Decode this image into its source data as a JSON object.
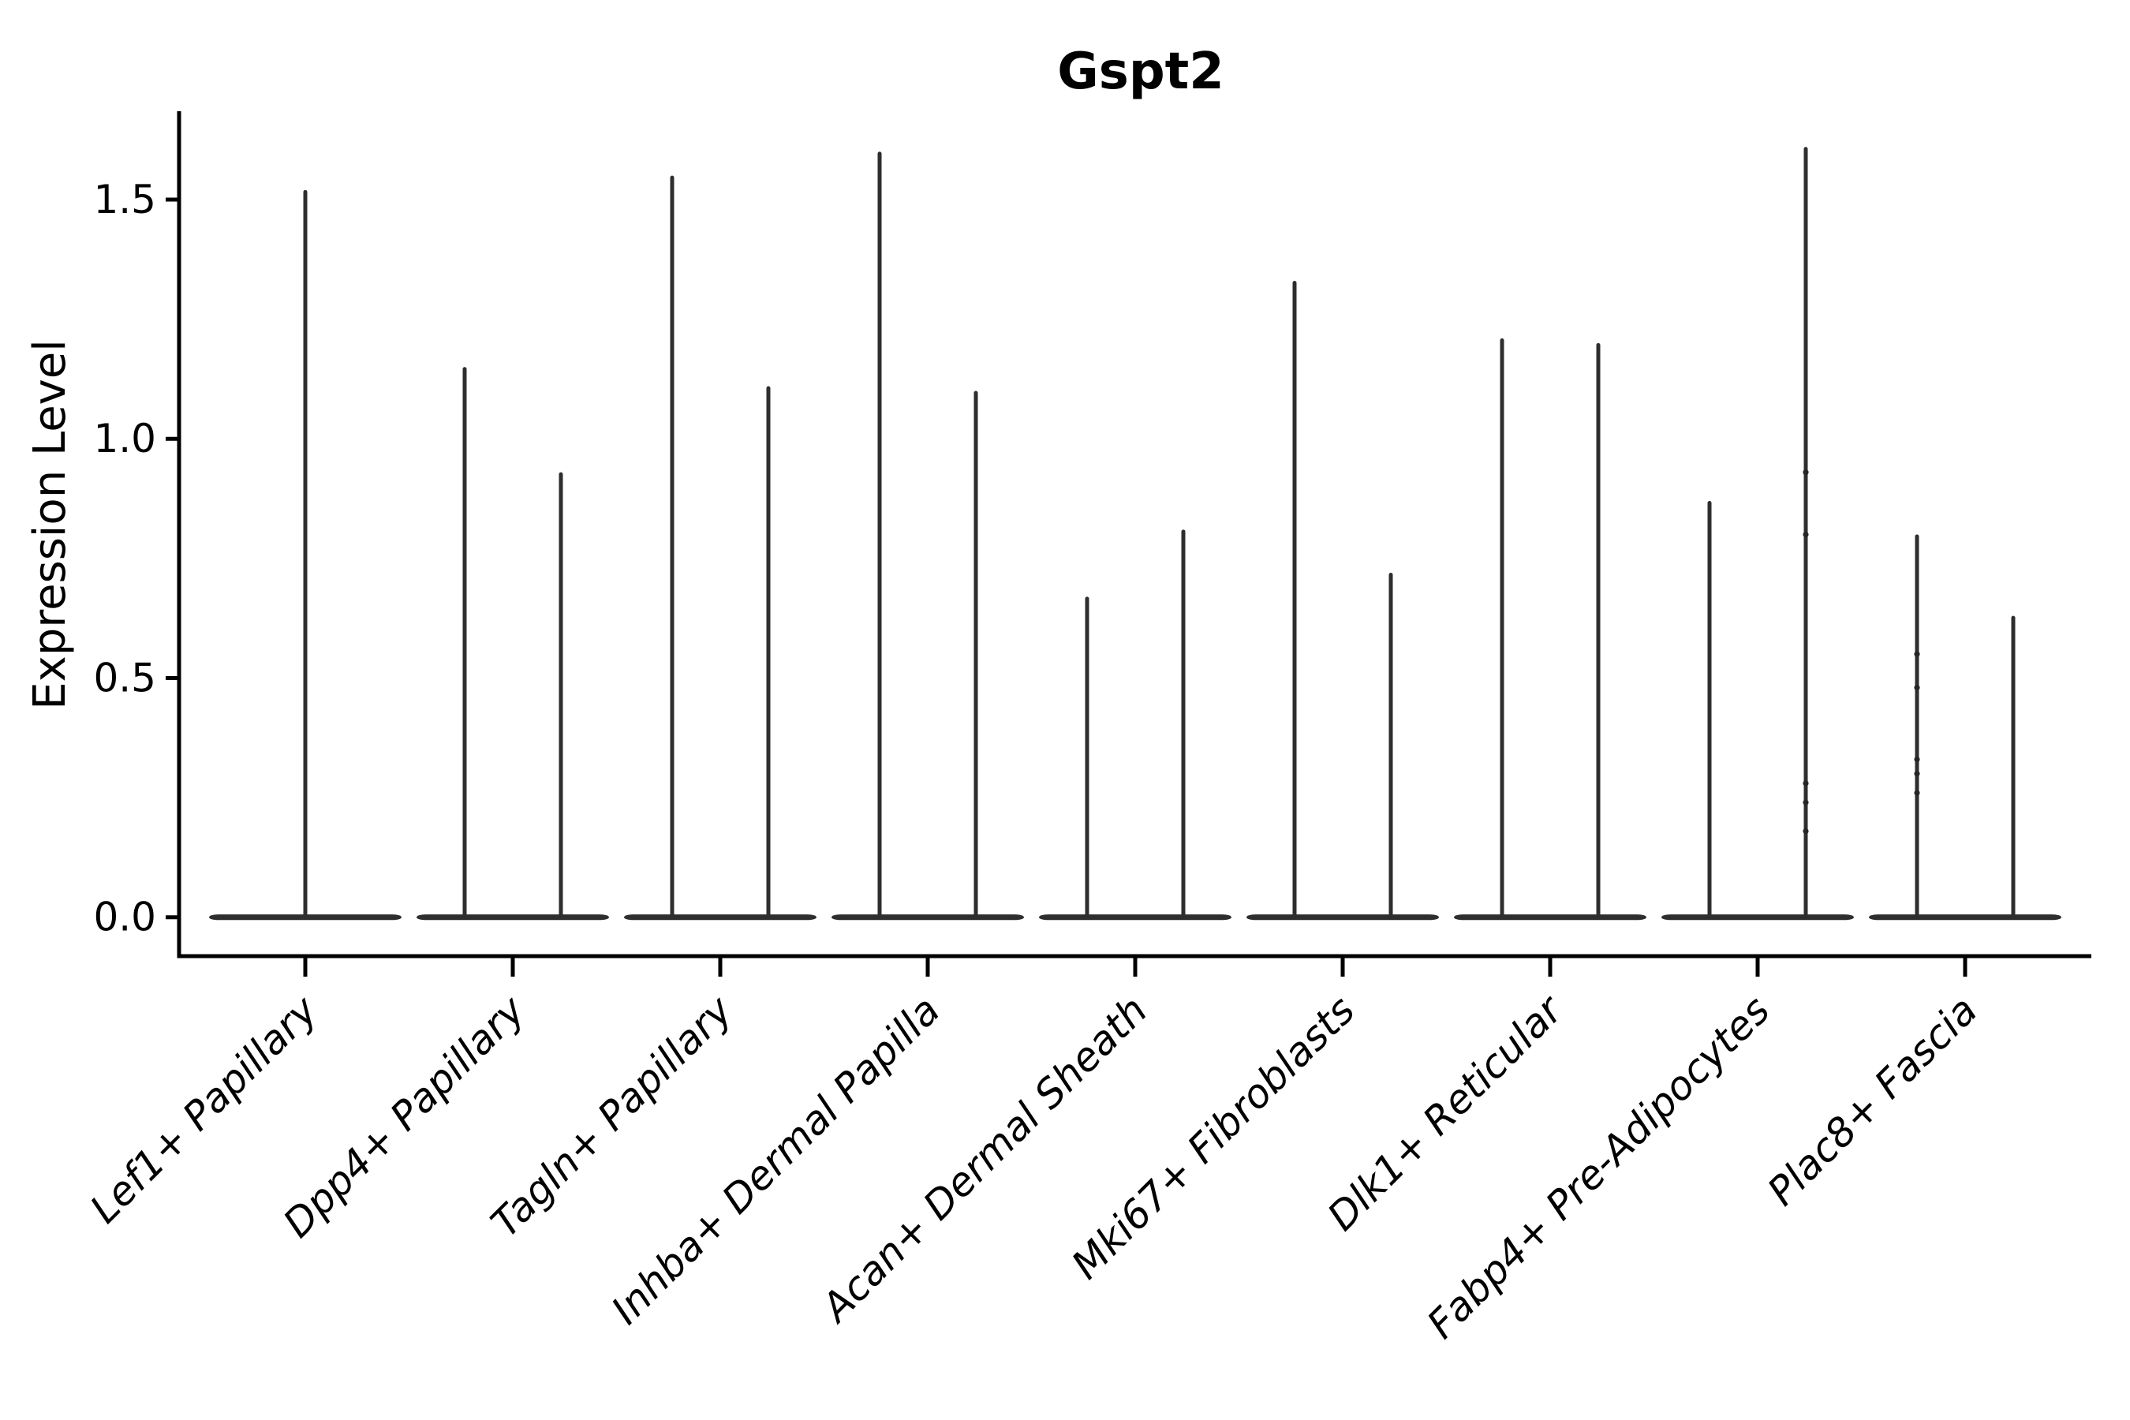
{
  "title": "Gspt2",
  "ylabel": "Expression Level",
  "colors": {
    "violin": "#2e2e2e",
    "axis": "#000000",
    "background": "#ffffff"
  },
  "chart_data": {
    "type": "violin",
    "title": "Gspt2",
    "xlabel": "",
    "ylabel": "Expression Level",
    "ylim": [
      0,
      1.69
    ],
    "yticks": [
      0.0,
      0.5,
      1.0,
      1.5
    ],
    "ytick_labels": [
      "0.0",
      "0.5",
      "1.0",
      "1.5"
    ],
    "grid": false,
    "legend": "none",
    "description": "Violin plot of Gspt2 expression per fibroblast subtype; every violin is collapsed in a flat band at 0 expression with a thin vertical tail reaching the maximum expression value. First category contains a single full-width violin; all other categories contain two side-by-side violins.",
    "categories": [
      "Lef1+ Papillary",
      "Dpp4+ Papillary",
      "Tagln+ Papillary",
      "Inhba+ Dermal Papilla",
      "Acan+ Dermal Sheath",
      "Mki67+ Fibroblasts",
      "Dlk1+ Reticular",
      "Fabp4+ Pre-Adipocytes",
      "Plac8+ Fascia"
    ],
    "violins": [
      {
        "category": "Lef1+ Papillary",
        "group_violins": [
          {
            "max": 1.52,
            "points": []
          }
        ]
      },
      {
        "category": "Dpp4+ Papillary",
        "group_violins": [
          {
            "max": 1.15,
            "points": []
          },
          {
            "max": 0.93,
            "points": []
          }
        ]
      },
      {
        "category": "Tagln+ Papillary",
        "group_violins": [
          {
            "max": 1.55,
            "points": []
          },
          {
            "max": 1.11,
            "points": []
          }
        ]
      },
      {
        "category": "Inhba+ Dermal Papilla",
        "group_violins": [
          {
            "max": 1.6,
            "points": []
          },
          {
            "max": 1.1,
            "points": []
          }
        ]
      },
      {
        "category": "Acan+ Dermal Sheath",
        "group_violins": [
          {
            "max": 0.67,
            "points": []
          },
          {
            "max": 0.81,
            "points": []
          }
        ]
      },
      {
        "category": "Mki67+ Fibroblasts",
        "group_violins": [
          {
            "max": 1.33,
            "points": []
          },
          {
            "max": 0.72,
            "points": []
          }
        ]
      },
      {
        "category": "Dlk1+ Reticular",
        "group_violins": [
          {
            "max": 1.21,
            "points": []
          },
          {
            "max": 1.2,
            "points": []
          }
        ]
      },
      {
        "category": "Fabp4+ Pre-Adipocytes",
        "group_violins": [
          {
            "max": 0.87,
            "points": []
          },
          {
            "max": 1.61,
            "points": [
              0.93,
              0.8,
              0.28,
              0.24,
              0.18
            ]
          }
        ]
      },
      {
        "category": "Plac8+ Fascia",
        "group_violins": [
          {
            "max": 0.8,
            "points": [
              0.55,
              0.48,
              0.33,
              0.3,
              0.26
            ]
          },
          {
            "max": 0.63,
            "points": []
          }
        ]
      }
    ]
  }
}
